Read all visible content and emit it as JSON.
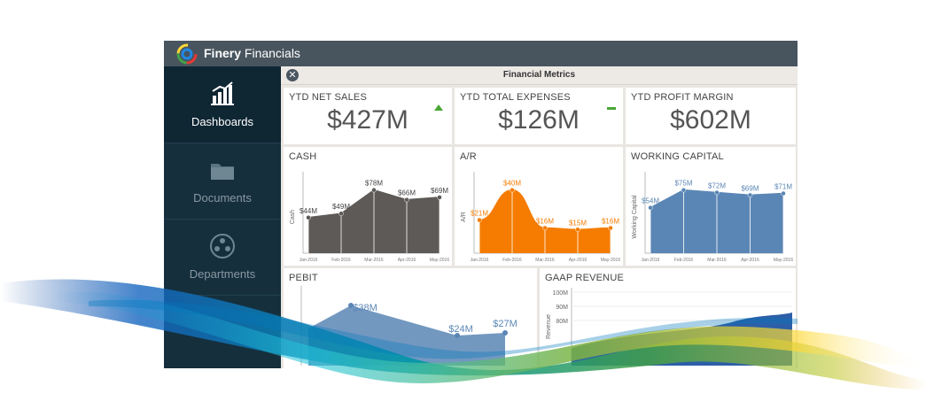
{
  "app": {
    "brand_bold": "Finery",
    "brand_rest": " Financials"
  },
  "sidebar": {
    "items": [
      {
        "label": "Dashboards",
        "icon": "chart-icon",
        "active": true
      },
      {
        "label": "Documents",
        "icon": "folder-icon",
        "active": false
      },
      {
        "label": "Departments",
        "icon": "people-icon",
        "active": false
      }
    ]
  },
  "metrics": {
    "title": "Financial Metrics",
    "kpis": [
      {
        "title": "YTD NET SALES",
        "value": "$427M",
        "trend": "up"
      },
      {
        "title": "YTD TOTAL EXPENSES",
        "value": "$126M",
        "trend": "flat"
      },
      {
        "title": "YTD PROFIT MARGIN",
        "value": "$602M",
        "trend": "none"
      }
    ]
  },
  "chart_data": [
    {
      "type": "area",
      "title": "CASH",
      "ylabel": "Cash",
      "color": "#5d5a57",
      "x": [
        "Jan-2016",
        "Feb-2016",
        "Mar-2016",
        "Apr-2016",
        "May-2016"
      ],
      "values": [
        44,
        49,
        78,
        66,
        69
      ],
      "labels": [
        "$44M",
        "$49M",
        "$78M",
        "$66M",
        "$69M"
      ]
    },
    {
      "type": "area",
      "title": "A/R",
      "ylabel": "A/R",
      "color": "#f57c00",
      "x": [
        "Jan-2016",
        "Feb-2016",
        "Mar-2016",
        "Apr-2016",
        "May-2016"
      ],
      "values": [
        21,
        40,
        16,
        15,
        16
      ],
      "labels": [
        "$21M",
        "$40M",
        "$16M",
        "$15M",
        "$16M"
      ]
    },
    {
      "type": "area",
      "title": "WORKING CAPITAL",
      "ylabel": "Working Capital",
      "color": "#5a86b5",
      "x": [
        "Jan-2016",
        "Feb-2016",
        "Mar-2016",
        "Apr-2016",
        "May-2016"
      ],
      "values": [
        54,
        75,
        72,
        69,
        71
      ],
      "labels": [
        "$54M",
        "$75M",
        "$72M",
        "$69M",
        "$71M"
      ]
    },
    {
      "type": "area",
      "title": "PEBIT",
      "color": "#5a86b5",
      "labels": [
        "$38M",
        "$24M",
        "$27M"
      ]
    },
    {
      "type": "area",
      "title": "GAAP REVENUE",
      "ylabel": "Revenue",
      "color": "#2d5fa8",
      "yticks": [
        "100M",
        "90M",
        "80M"
      ]
    }
  ]
}
